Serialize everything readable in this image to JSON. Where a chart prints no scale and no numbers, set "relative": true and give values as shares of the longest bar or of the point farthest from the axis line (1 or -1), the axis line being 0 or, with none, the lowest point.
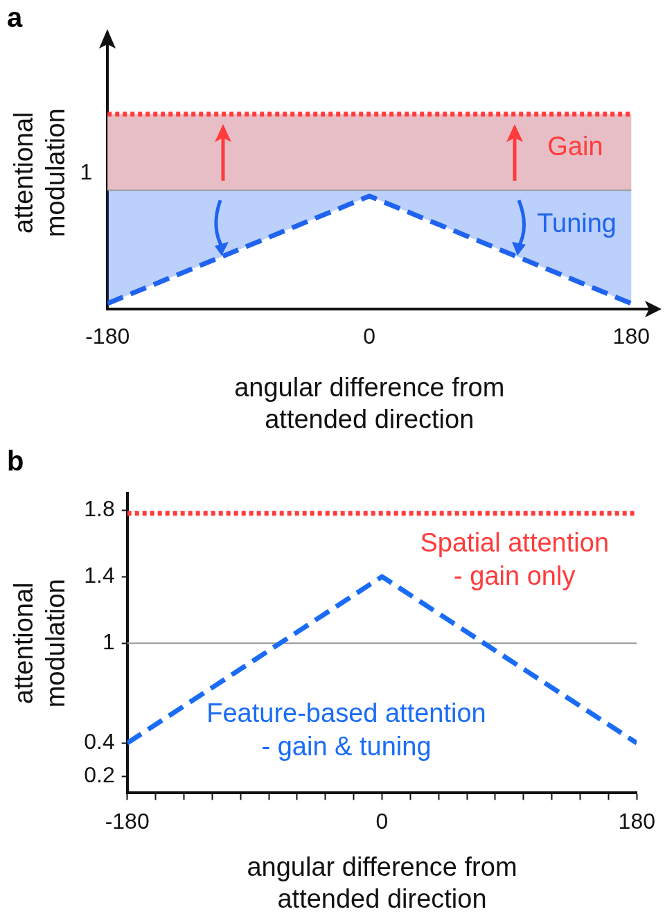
{
  "chart_data": [
    {
      "type": "line",
      "title": "a",
      "relative": true,
      "xlabel": "angular difference from\nattended direction",
      "ylabel": "attentional\nmodulation",
      "xlim": [
        -180,
        180
      ],
      "xticks": [
        -180,
        0,
        180
      ],
      "series": [
        {
          "color": "#ff3b3b",
          "x": [
            -180,
            180
          ],
          "values": [
            1,
            1
          ],
          "line_style": "dotted"
        },
        {
          "name": "Tuning",
          "color": "#1f63ef",
          "x": [
            -180,
            0,
            180
          ],
          "values": [
            0.03,
            0.58,
            0.03
          ],
          "lower": [
            0.03,
            0.58,
            0.03
          ],
          "upper": [
            0.61,
            0.61,
            0.61
          ],
          "line_style": "dashed"
        }
      ],
      "bands": [
        {
          "axis": "y",
          "from": 0.61,
          "to": 1,
          "label": "Gain",
          "color": "#e8bec6"
        }
      ],
      "ref_lines": [
        {
          "axis": "y",
          "value": 0.61,
          "label": "1",
          "color": "#999999"
        }
      ]
    },
    {
      "type": "line",
      "title": "b",
      "xlabel": "angular difference from\nattended direction",
      "ylabel": "attentional\nmodulation",
      "xlim": [
        -180,
        180
      ],
      "ylim": [
        0.1,
        1.9
      ],
      "xticks": [
        -180,
        {
          "value": -160,
          "label": null
        },
        {
          "value": -140,
          "label": null
        },
        {
          "value": -120,
          "label": null
        },
        {
          "value": -100,
          "label": null
        },
        {
          "value": -80,
          "label": null
        },
        {
          "value": -60,
          "label": null
        },
        {
          "value": -40,
          "label": null
        },
        {
          "value": -20,
          "label": null
        },
        0,
        {
          "value": 20,
          "label": null
        },
        {
          "value": 40,
          "label": null
        },
        {
          "value": 60,
          "label": null
        },
        {
          "value": 80,
          "label": null
        },
        {
          "value": 100,
          "label": null
        },
        {
          "value": 120,
          "label": null
        },
        {
          "value": 140,
          "label": null
        },
        {
          "value": 160,
          "label": null
        },
        180
      ],
      "yticks": [
        0.2,
        0.4,
        1,
        1.4,
        1.8
      ],
      "series": [
        {
          "name": "Spatial attention\n- gain only",
          "color": "#ff3b3b",
          "x": [
            -180,
            180
          ],
          "values": [
            1.78,
            1.78
          ],
          "line_style": "dotted"
        },
        {
          "name": "Feature-based attention\n- gain & tuning",
          "color": "#1a6cf5",
          "x": [
            -180,
            0,
            180
          ],
          "values": [
            0.4,
            1.4,
            0.4
          ],
          "line_style": "dashed"
        }
      ],
      "ref_lines": [
        {
          "axis": "y",
          "value": 1,
          "color": "#999999"
        }
      ]
    }
  ]
}
